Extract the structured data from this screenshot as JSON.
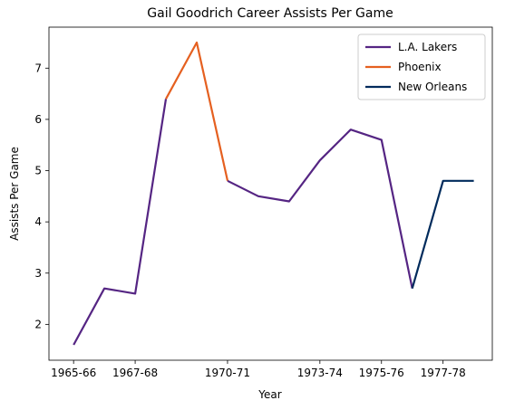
{
  "chart_data": {
    "type": "line",
    "title": "Gail Goodrich Career Assists Per Game",
    "xlabel": "Year",
    "ylabel": "Assists Per Game",
    "x": [
      "1965-66",
      "1966-67",
      "1967-68",
      "1968-69",
      "1969-70",
      "1970-71",
      "1971-72",
      "1972-73",
      "1973-74",
      "1974-75",
      "1975-76",
      "1976-77",
      "1977-78",
      "1978-79"
    ],
    "xticks": [
      "1965-66",
      "1967-68",
      "1970-71",
      "1973-74",
      "1975-76",
      "1977-78"
    ],
    "xtick_indices": [
      0,
      2,
      5,
      8,
      10,
      12
    ],
    "yticks": [
      2,
      3,
      4,
      5,
      6,
      7
    ],
    "xlim": [
      -0.8,
      13.6
    ],
    "ylim": [
      1.3,
      7.8
    ],
    "grid": false,
    "legend_position": "top-right",
    "series": [
      {
        "name": "L.A. Lakers",
        "color": "#552583",
        "points": [
          [
            0,
            1.6
          ],
          [
            1,
            2.7
          ],
          [
            2,
            2.6
          ],
          [
            3,
            6.4
          ]
        ]
      },
      {
        "name": "Phoenix",
        "color": "#E56020",
        "points": [
          [
            3,
            6.4
          ],
          [
            4,
            7.5
          ],
          [
            5,
            4.8
          ]
        ]
      },
      {
        "name": "L.A. Lakers",
        "color": "#552583",
        "legend": false,
        "points": [
          [
            5,
            4.8
          ],
          [
            6,
            4.5
          ],
          [
            7,
            4.4
          ],
          [
            8,
            5.2
          ],
          [
            9,
            5.8
          ],
          [
            10,
            5.6
          ],
          [
            11,
            2.7
          ]
        ]
      },
      {
        "name": "New Orleans",
        "color": "#002B5C",
        "points": [
          [
            11,
            2.7
          ],
          [
            12,
            4.8
          ],
          [
            13,
            4.8
          ]
        ]
      }
    ]
  }
}
